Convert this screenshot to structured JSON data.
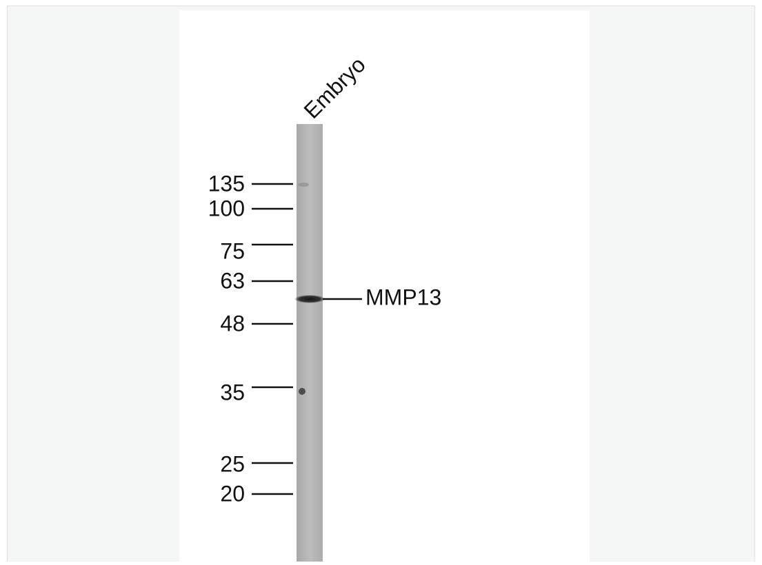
{
  "lane_label": "Embryo",
  "markers": [
    "135",
    "100",
    "75",
    "63",
    "48",
    "35",
    "25",
    "20"
  ],
  "band_label": "MMP13"
}
